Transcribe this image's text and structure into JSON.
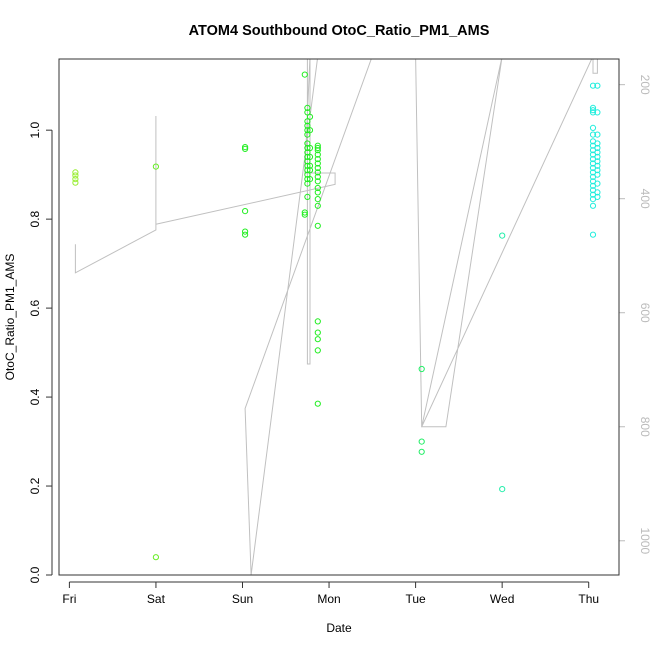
{
  "chart_data": {
    "type": "scatter",
    "title": "ATOM4 Southbound OtoC_Ratio_PM1_AMS",
    "xlabel": "Date",
    "ylabel": "OtoC_Ratio_PM1_AMS",
    "x_unit": "day",
    "x_ticks": [
      {
        "value": 0,
        "label": "Fri"
      },
      {
        "value": 1,
        "label": "Sat"
      },
      {
        "value": 2,
        "label": "Sun"
      },
      {
        "value": 3,
        "label": "Mon"
      },
      {
        "value": 4,
        "label": "Tue"
      },
      {
        "value": 5,
        "label": "Wed"
      },
      {
        "value": 6,
        "label": "Thu"
      }
    ],
    "xlim": [
      -0.12,
      6.35
    ],
    "ylim": [
      0,
      1.16
    ],
    "y_ticks": [
      0.0,
      0.2,
      0.4,
      0.6,
      0.8,
      1.0
    ],
    "y_tick_labels": [
      "0.0",
      "0.2",
      "0.4",
      "0.6",
      "0.8",
      "1.0"
    ],
    "y2_ticks": [
      200,
      400,
      600,
      800,
      1000
    ],
    "y2_tick_labels": [
      "200",
      "400",
      "600",
      "800",
      "1000"
    ],
    "y2lim": [
      1060,
      155
    ],
    "grid": false,
    "series": [
      {
        "kind": "points",
        "color_stops": [
          "#99ee33",
          "#66ee22",
          "#22ee22",
          "#22ee66",
          "#22eeaa",
          "#22eedd"
        ],
        "points": [
          [
            0.07,
            0.905
          ],
          [
            0.07,
            0.898
          ],
          [
            0.07,
            0.89
          ],
          [
            0.07,
            0.882
          ],
          [
            1.0,
            0.918
          ],
          [
            1.0,
            0.04
          ],
          [
            2.03,
            0.962
          ],
          [
            2.03,
            0.958
          ],
          [
            2.03,
            0.818
          ],
          [
            2.03,
            0.772
          ],
          [
            2.03,
            0.765
          ],
          [
            2.72,
            1.125
          ],
          [
            2.72,
            0.815
          ],
          [
            2.72,
            0.81
          ],
          [
            2.75,
            1.05
          ],
          [
            2.75,
            1.04
          ],
          [
            2.75,
            1.02
          ],
          [
            2.75,
            1.01
          ],
          [
            2.75,
            1.0
          ],
          [
            2.75,
            0.99
          ],
          [
            2.75,
            0.97
          ],
          [
            2.75,
            0.96
          ],
          [
            2.75,
            0.95
          ],
          [
            2.75,
            0.94
          ],
          [
            2.75,
            0.93
          ],
          [
            2.75,
            0.92
          ],
          [
            2.75,
            0.91
          ],
          [
            2.75,
            0.9
          ],
          [
            2.75,
            0.89
          ],
          [
            2.75,
            0.88
          ],
          [
            2.75,
            0.85
          ],
          [
            2.78,
            1.03
          ],
          [
            2.78,
            1.0
          ],
          [
            2.78,
            0.96
          ],
          [
            2.78,
            0.94
          ],
          [
            2.78,
            0.92
          ],
          [
            2.78,
            0.91
          ],
          [
            2.78,
            0.89
          ],
          [
            2.87,
            0.965
          ],
          [
            2.87,
            0.96
          ],
          [
            2.87,
            0.955
          ],
          [
            2.87,
            0.945
          ],
          [
            2.87,
            0.935
          ],
          [
            2.87,
            0.925
          ],
          [
            2.87,
            0.915
          ],
          [
            2.87,
            0.905
          ],
          [
            2.87,
            0.895
          ],
          [
            2.87,
            0.885
          ],
          [
            2.87,
            0.87
          ],
          [
            2.87,
            0.86
          ],
          [
            2.87,
            0.845
          ],
          [
            2.87,
            0.83
          ],
          [
            2.87,
            0.785
          ],
          [
            2.87,
            0.57
          ],
          [
            2.87,
            0.545
          ],
          [
            2.87,
            0.53
          ],
          [
            2.87,
            0.505
          ],
          [
            2.87,
            0.385
          ],
          [
            4.07,
            0.463
          ],
          [
            4.07,
            0.3
          ],
          [
            4.07,
            0.277
          ],
          [
            5.0,
            0.763
          ],
          [
            5.0,
            0.193
          ],
          [
            6.05,
            1.1
          ],
          [
            6.05,
            1.05
          ],
          [
            6.05,
            1.045
          ],
          [
            6.05,
            1.04
          ],
          [
            6.05,
            1.005
          ],
          [
            6.05,
            0.99
          ],
          [
            6.05,
            0.975
          ],
          [
            6.05,
            0.965
          ],
          [
            6.05,
            0.955
          ],
          [
            6.05,
            0.945
          ],
          [
            6.05,
            0.935
          ],
          [
            6.05,
            0.925
          ],
          [
            6.05,
            0.915
          ],
          [
            6.05,
            0.905
          ],
          [
            6.05,
            0.895
          ],
          [
            6.05,
            0.885
          ],
          [
            6.05,
            0.875
          ],
          [
            6.05,
            0.865
          ],
          [
            6.05,
            0.855
          ],
          [
            6.05,
            0.845
          ],
          [
            6.05,
            0.83
          ],
          [
            6.05,
            0.765
          ],
          [
            6.1,
            1.1
          ],
          [
            6.1,
            1.04
          ],
          [
            6.1,
            0.99
          ],
          [
            6.1,
            0.97
          ],
          [
            6.1,
            0.96
          ],
          [
            6.1,
            0.95
          ],
          [
            6.1,
            0.94
          ],
          [
            6.1,
            0.93
          ],
          [
            6.1,
            0.92
          ],
          [
            6.1,
            0.91
          ],
          [
            6.1,
            0.9
          ],
          [
            6.1,
            0.88
          ],
          [
            6.1,
            0.86
          ],
          [
            6.1,
            0.85
          ]
        ]
      },
      {
        "kind": "line",
        "axis": "right",
        "color": "#c0c0c0",
        "points": [
          [
            0.07,
            480
          ],
          [
            0.07,
            530
          ],
          [
            1.0,
            455
          ],
          [
            1.0,
            255
          ],
          [
            1.0,
            445
          ],
          [
            3.07,
            375
          ],
          [
            3.07,
            355
          ],
          [
            2.72,
            355
          ],
          [
            2.78,
            150
          ],
          [
            2.78,
            690
          ],
          [
            2.75,
            690
          ],
          [
            2.75,
            150
          ],
          [
            2.78,
            150
          ],
          [
            2.87,
            150
          ],
          [
            2.87,
            150
          ],
          [
            2.1,
            1060
          ],
          [
            2.03,
            768
          ],
          [
            3.5,
            150
          ],
          [
            4.0,
            150
          ],
          [
            4.07,
            800
          ],
          [
            5.0,
            150
          ],
          [
            4.35,
            800
          ],
          [
            4.07,
            800
          ],
          [
            6.05,
            150
          ],
          [
            6.05,
            180
          ],
          [
            6.1,
            180
          ],
          [
            6.1,
            150
          ]
        ]
      }
    ]
  }
}
